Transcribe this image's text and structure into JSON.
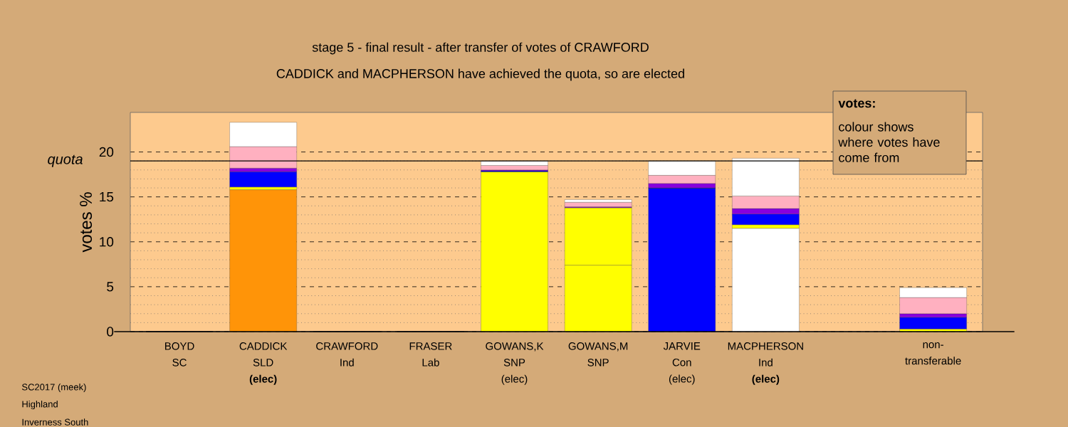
{
  "chart_data": {
    "type": "bar",
    "stacked": true,
    "title": "stage 5 - final result - after transfer of votes of CRAWFORD",
    "subtitle": "CADDICK and MACPHERSON have achieved the quota, so are elected",
    "ylabel": "votes %",
    "categories": [
      "BOYD\nSC",
      "CADDICK\nSLD\n**(elec)**",
      "CRAWFORD\nInd",
      "FRASER\nLab",
      "GOWANS,K\nSNP\n(elec)",
      "GOWANS,M\nSNP",
      "JARVIE\nCon\n(elec)",
      "MACPHERSON\nInd\n**(elec)**",
      null,
      "non-\ntransferable"
    ],
    "series": [
      {
        "colors": [
          "#ffb0c0",
          "#ff9408",
          "#ffffff",
          "#8800dd",
          "#ffff00",
          "#ffff00",
          "#0000ff",
          "#ffffff",
          null,
          null
        ],
        "values": [
          0,
          15.8,
          0,
          0,
          17.8,
          7.4,
          16.0,
          11.5,
          null,
          null
        ]
      },
      {
        "color": "#ffff00",
        "values": [
          0,
          0.3,
          0,
          0,
          0,
          6.4,
          0,
          0.4,
          null,
          0.3
        ]
      },
      {
        "color": "#0000ff",
        "values": [
          0,
          1.7,
          0,
          0,
          0.1,
          0,
          0,
          1.2,
          null,
          1.3
        ]
      },
      {
        "color": "#8800dd",
        "values": [
          0,
          0.4,
          0,
          0,
          0.1,
          0.1,
          0.5,
          0.6,
          null,
          0.4
        ]
      },
      {
        "color": "#ffb0c0",
        "values": [
          0,
          2.4,
          0,
          0,
          0.5,
          0.5,
          0.9,
          1.4,
          null,
          1.8
        ]
      },
      {
        "color": "#ffffff",
        "values": [
          0,
          2.7,
          0,
          0,
          0.5,
          0.3,
          1.6,
          4.2,
          null,
          1.1
        ]
      }
    ],
    "ylim": [
      0,
      24.4
    ],
    "yticks": [
      0,
      5,
      10,
      15,
      20
    ],
    "grid": true,
    "ref_lines": [
      {
        "axis": "y",
        "value": 19.0,
        "label": "quota",
        "color": "#000000"
      }
    ],
    "annotations": [
      "votes:",
      "colour shows where votes have come from",
      "SC2017 (meek)",
      "Highland",
      "Inverness South"
    ]
  }
}
